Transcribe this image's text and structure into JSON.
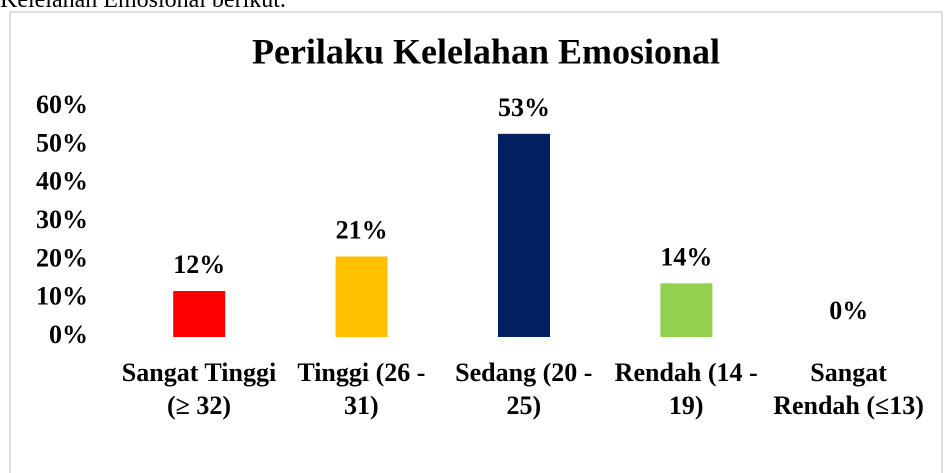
{
  "caption": "Kelelahan Emosional berikut.",
  "chart_data": {
    "type": "bar",
    "title": "Perilaku Kelelahan Emosional",
    "categories": [
      "Sangat Tinggi (≥ 32)",
      "Tinggi (26 - 31)",
      "Sedang (20 - 25)",
      "Rendah (14 - 19)",
      "Sangat Rendah (≤13)"
    ],
    "values": [
      12,
      21,
      53,
      14,
      0
    ],
    "value_labels": [
      "12%",
      "21%",
      "53%",
      "14%",
      "0%"
    ],
    "colors": [
      "#ff0000",
      "#ffc000",
      "#002060",
      "#92d050",
      "#7f7f7f"
    ],
    "ylim": [
      0,
      60
    ],
    "yticks": [
      {
        "value": 0,
        "label": "0%"
      },
      {
        "value": 10,
        "label": "10%"
      },
      {
        "value": 20,
        "label": "20%"
      },
      {
        "value": 30,
        "label": "30%"
      },
      {
        "value": 40,
        "label": "40%"
      },
      {
        "value": 50,
        "label": "50%"
      },
      {
        "value": 60,
        "label": "60%"
      }
    ],
    "grid": false
  }
}
